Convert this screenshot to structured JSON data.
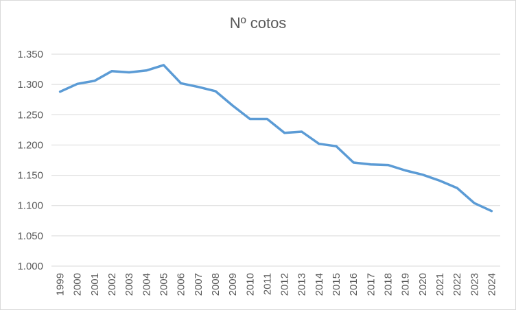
{
  "chart_data": {
    "type": "line",
    "title": "Nº cotos",
    "xlabel": "",
    "ylabel": "",
    "ylim": [
      1000,
      1350
    ],
    "yticks": [
      1000,
      1050,
      1100,
      1150,
      1200,
      1250,
      1300,
      1350
    ],
    "ytick_labels": [
      "1.000",
      "1.050",
      "1.100",
      "1.150",
      "1.200",
      "1.250",
      "1.300",
      "1.350"
    ],
    "grid": true,
    "legend": "none",
    "series_color": "#5b9bd5",
    "grid_color": "#d9d9d9",
    "categories": [
      "1999",
      "2000",
      "2001",
      "2002",
      "2003",
      "2004",
      "2005",
      "2006",
      "2007",
      "2008",
      "2009",
      "2010",
      "2011",
      "2012",
      "2013",
      "2014",
      "2015",
      "2016",
      "2017",
      "2018",
      "2019",
      "2020",
      "2021",
      "2022",
      "2023",
      "2024"
    ],
    "series": [
      {
        "values": [
          1288,
          1301,
          1306,
          1322,
          1320,
          1323,
          1332,
          1302,
          1296,
          1289,
          1265,
          1243,
          1243,
          1220,
          1222,
          1202,
          1198,
          1171,
          1168,
          1167,
          1158,
          1151,
          1141,
          1129,
          1104,
          1091
        ]
      }
    ]
  }
}
